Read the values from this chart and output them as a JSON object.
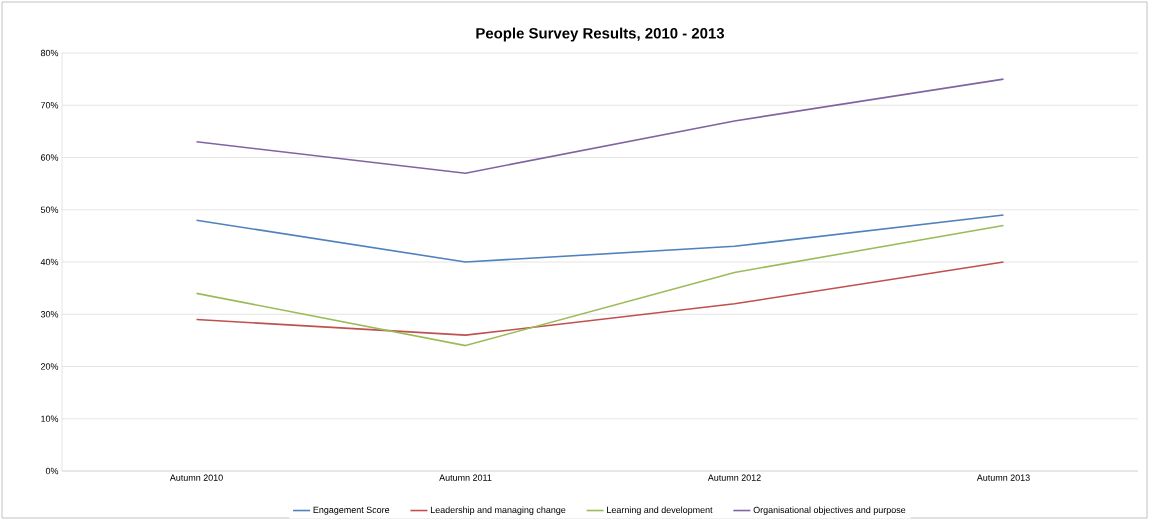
{
  "chart_data": {
    "type": "line",
    "title": "People Survey Results, 2010 - 2013",
    "categories": [
      "Autumn 2010",
      "Autumn 2011",
      "Autumn 2012",
      "Autumn 2013"
    ],
    "series": [
      {
        "name": "Engagement Score",
        "color": "#4f81bd",
        "values": [
          48,
          40,
          43,
          49
        ]
      },
      {
        "name": "Leadership and managing change",
        "color": "#c0504d",
        "values": [
          29,
          26,
          32,
          40
        ]
      },
      {
        "name": "Learning and development",
        "color": "#9bbb59",
        "values": [
          34,
          24,
          38,
          47
        ]
      },
      {
        "name": "Organisational objectives and purpose",
        "color": "#8064a2",
        "values": [
          63,
          57,
          67,
          75
        ]
      }
    ],
    "ylim": [
      0,
      80
    ],
    "yticks": [
      {
        "value": 0,
        "label": "0%"
      },
      {
        "value": 10,
        "label": "10%"
      },
      {
        "value": 20,
        "label": "20%"
      },
      {
        "value": 30,
        "label": "30%"
      },
      {
        "value": 40,
        "label": "40%"
      },
      {
        "value": 50,
        "label": "50%"
      },
      {
        "value": 60,
        "label": "60%"
      },
      {
        "value": 70,
        "label": "70%"
      },
      {
        "value": 80,
        "label": "80%"
      }
    ],
    "grid": "y",
    "legend": "bottom",
    "marker": "none",
    "line_style": "solid"
  }
}
